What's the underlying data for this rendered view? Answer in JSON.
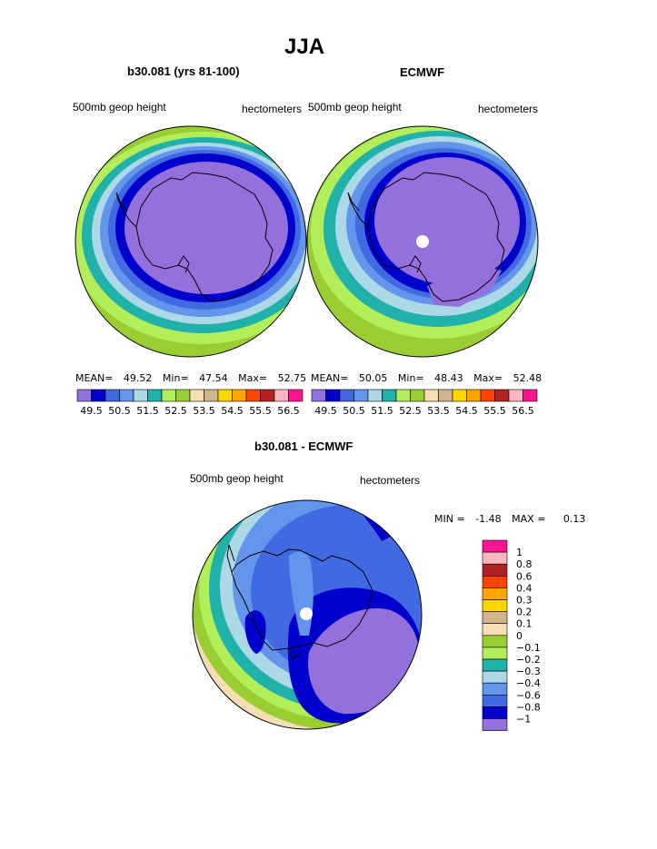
{
  "title": "JJA",
  "panels": [
    {
      "title": "b30.081 (yrs 81-100)",
      "left_label": "500mb geop height",
      "right_label": "hectometers",
      "stats": {
        "mean_label": "MEAN=",
        "mean": "49.52",
        "min_label": "Min=",
        "min": "47.54",
        "max_label": "Max=",
        "max": "52.75"
      }
    },
    {
      "title": "ECMWF",
      "left_label": "500mb geop height",
      "right_label": "hectometers",
      "stats": {
        "mean_label": "MEAN=",
        "mean": "50.05",
        "min_label": "Min=",
        "min": "48.43",
        "max_label": "Max=",
        "max": "52.48"
      }
    },
    {
      "title": "b30.081 - ECMWF",
      "left_label": "500mb geop height",
      "right_label": "hectometers",
      "stats": {
        "min_label": "MIN =",
        "min": "-1.48",
        "max_label": "MAX =",
        "max": "0.13"
      }
    }
  ],
  "colors": {
    "height_scale": [
      "#9370db",
      "#0000cd",
      "#4169e1",
      "#6495ed",
      "#add8e6",
      "#20b2aa",
      "#b2ee5a",
      "#9acd32",
      "#f5deb3",
      "#d2b48c",
      "#ffd700",
      "#ffa500",
      "#ff4500",
      "#b22222",
      "#ffb6c1",
      "#ff1493"
    ],
    "diff_scale": [
      "#9370db",
      "#0000cd",
      "#4169e1",
      "#6495ed",
      "#add8e6",
      "#20b2aa",
      "#b2ee5a",
      "#9acd32",
      "#f5deb3",
      "#d2b48c",
      "#ffd700",
      "#ffa500",
      "#ff4500",
      "#b22222",
      "#ffb6c1",
      "#ff1493"
    ],
    "pole_marker": "#ffffff",
    "coastline": "#000000"
  },
  "chart_data": [
    {
      "type": "heatmap",
      "title": "b30.081 (yrs 81-100)",
      "projection": "south polar stereographic",
      "variable": "500mb geop height",
      "units": "hectometers",
      "mean": 49.52,
      "min": 47.54,
      "max": 52.75,
      "levels": [
        49.5,
        50,
        50.5,
        51,
        51.5,
        52,
        52.5,
        53,
        53.5,
        54,
        54.5,
        55,
        55.5,
        56,
        56.5
      ],
      "tick_labels": [
        "49.5",
        "50.5",
        "51.5",
        "52.5",
        "53.5",
        "54.5",
        "55.5",
        "56.5"
      ]
    },
    {
      "type": "heatmap",
      "title": "ECMWF",
      "projection": "south polar stereographic",
      "variable": "500mb geop height",
      "units": "hectometers",
      "mean": 50.05,
      "min": 48.43,
      "max": 52.48,
      "levels": [
        49.5,
        50,
        50.5,
        51,
        51.5,
        52,
        52.5,
        53,
        53.5,
        54,
        54.5,
        55,
        55.5,
        56,
        56.5
      ],
      "tick_labels": [
        "49.5",
        "50.5",
        "51.5",
        "52.5",
        "53.5",
        "54.5",
        "55.5",
        "56.5"
      ]
    },
    {
      "type": "heatmap",
      "title": "b30.081 - ECMWF",
      "projection": "south polar stereographic",
      "variable": "500mb geop height",
      "units": "hectometers",
      "min": -1.48,
      "max": 0.13,
      "levels": [
        -1,
        -0.8,
        -0.6,
        -0.4,
        -0.3,
        -0.2,
        -0.1,
        0,
        0.1,
        0.2,
        0.3,
        0.4,
        0.6,
        0.8,
        1
      ],
      "tick_labels": [
        "1",
        "0.8",
        "0.6",
        "0.4",
        "0.3",
        "0.2",
        "0.1",
        "0",
        "−0.1",
        "−0.2",
        "−0.3",
        "−0.4",
        "−0.6",
        "−0.8",
        "−1"
      ]
    }
  ]
}
